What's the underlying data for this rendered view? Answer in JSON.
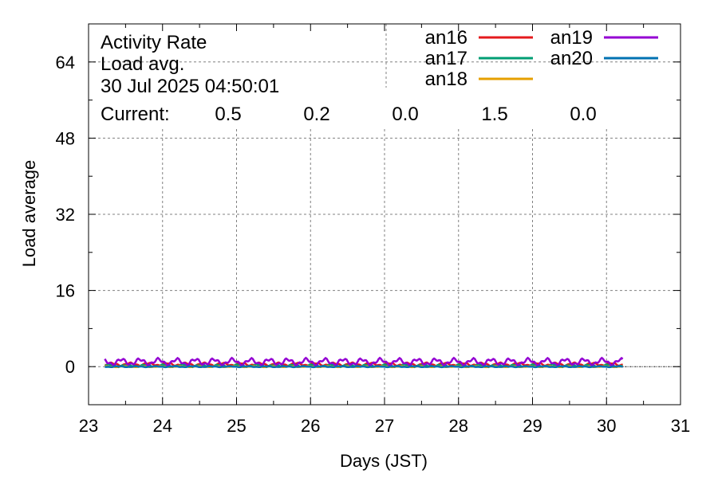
{
  "info": {
    "title": "Activity Rate",
    "subtitle": "Load avg.",
    "timestamp": "30 Jul 2025 04:50:01",
    "current_label": "Current:"
  },
  "current": [
    {
      "value": "0.5",
      "color": "#e41a1c"
    },
    {
      "value": "0.2",
      "color": "#009e73"
    },
    {
      "value": "0.0",
      "color": "#e69f00"
    },
    {
      "value": "1.5",
      "color": "#9400d3"
    },
    {
      "value": "0.0",
      "color": "#0072b2"
    }
  ],
  "chart_data": {
    "type": "line",
    "xlabel": "Days (JST)",
    "ylabel": "Load average",
    "xlim": [
      23,
      31
    ],
    "ylim": [
      -8,
      72
    ],
    "xticks": [
      "23",
      "24",
      "25",
      "26",
      "27",
      "28",
      "29",
      "30",
      "31"
    ],
    "yticks": [
      "0",
      "16",
      "32",
      "48",
      "64"
    ],
    "grid": true,
    "legend_position": "top-right",
    "x_range_of_data": [
      23.22,
      30.22
    ],
    "series": [
      {
        "name": "an16",
        "color": "#e41a1c",
        "typical_value": 0.5,
        "current": 0.5
      },
      {
        "name": "an17",
        "color": "#009e73",
        "typical_value": 0.2,
        "current": 0.2
      },
      {
        "name": "an18",
        "color": "#e69f00",
        "typical_value": 0.0,
        "current": 0.0
      },
      {
        "name": "an19",
        "color": "#9400d3",
        "typical_value": 1.0,
        "current": 1.5
      },
      {
        "name": "an20",
        "color": "#0072b2",
        "typical_value": 0.0,
        "current": 0.0
      }
    ]
  }
}
